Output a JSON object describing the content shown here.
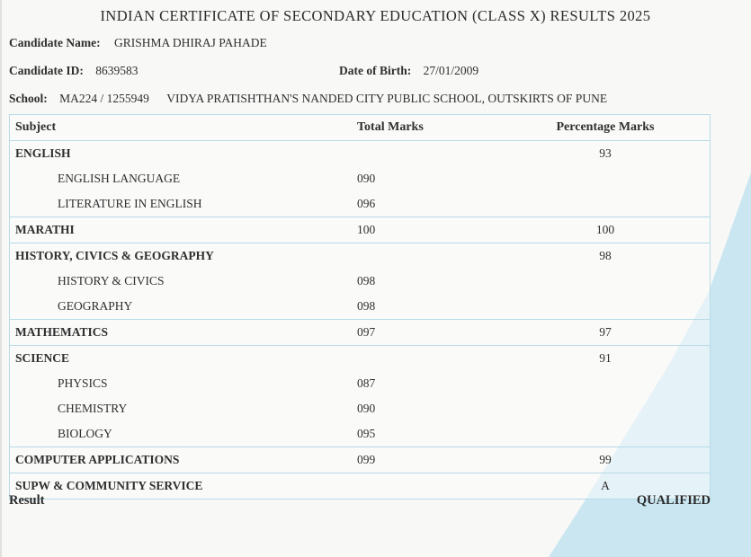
{
  "page": {
    "title": "INDIAN CERTIFICATE OF SECONDARY EDUCATION (CLASS X) RESULTS 2025",
    "background_color": "#f8f8f7",
    "table_border_color": "#b7dbe7",
    "decor_triangle_color": "#c9e6f1",
    "text_color": "#2f2f2f"
  },
  "candidate": {
    "name_label": "Candidate Name:",
    "name": "GRISHMA DHIRAJ PAHADE",
    "id_label": "Candidate ID:",
    "id": "8639583",
    "dob_label": "Date of Birth:",
    "dob": "27/01/2009",
    "school_label": "School:",
    "school_code": "MA224 / 1255949",
    "school_name": "VIDYA PRATISHTHAN'S NANDED CITY PUBLIC SCHOOL, OUTSKIRTS OF PUNE"
  },
  "table": {
    "headers": {
      "subject": "Subject",
      "total": "Total Marks",
      "pct": "Percentage Marks"
    },
    "rows": [
      {
        "subject": "ENGLISH",
        "total": "",
        "pct": "93"
      },
      {
        "subject": "ENGLISH LANGUAGE",
        "total": "090",
        "pct": ""
      },
      {
        "subject": "LITERATURE IN ENGLISH",
        "total": "096",
        "pct": ""
      },
      {
        "subject": "MARATHI",
        "total": "100",
        "pct": "100"
      },
      {
        "subject": "HISTORY, CIVICS & GEOGRAPHY",
        "total": "",
        "pct": "98"
      },
      {
        "subject": "HISTORY & CIVICS",
        "total": "098",
        "pct": ""
      },
      {
        "subject": "GEOGRAPHY",
        "total": "098",
        "pct": ""
      },
      {
        "subject": "MATHEMATICS",
        "total": "097",
        "pct": "97"
      },
      {
        "subject": "SCIENCE",
        "total": "",
        "pct": "91"
      },
      {
        "subject": "PHYSICS",
        "total": "087",
        "pct": ""
      },
      {
        "subject": "CHEMISTRY",
        "total": "090",
        "pct": ""
      },
      {
        "subject": "BIOLOGY",
        "total": "095",
        "pct": ""
      },
      {
        "subject": "COMPUTER APPLICATIONS",
        "total": "099",
        "pct": "99"
      },
      {
        "subject": "SUPW & COMMUNITY SERVICE",
        "total": "",
        "pct": "A"
      }
    ]
  },
  "result": {
    "label": "Result",
    "value": "QUALIFIED"
  }
}
